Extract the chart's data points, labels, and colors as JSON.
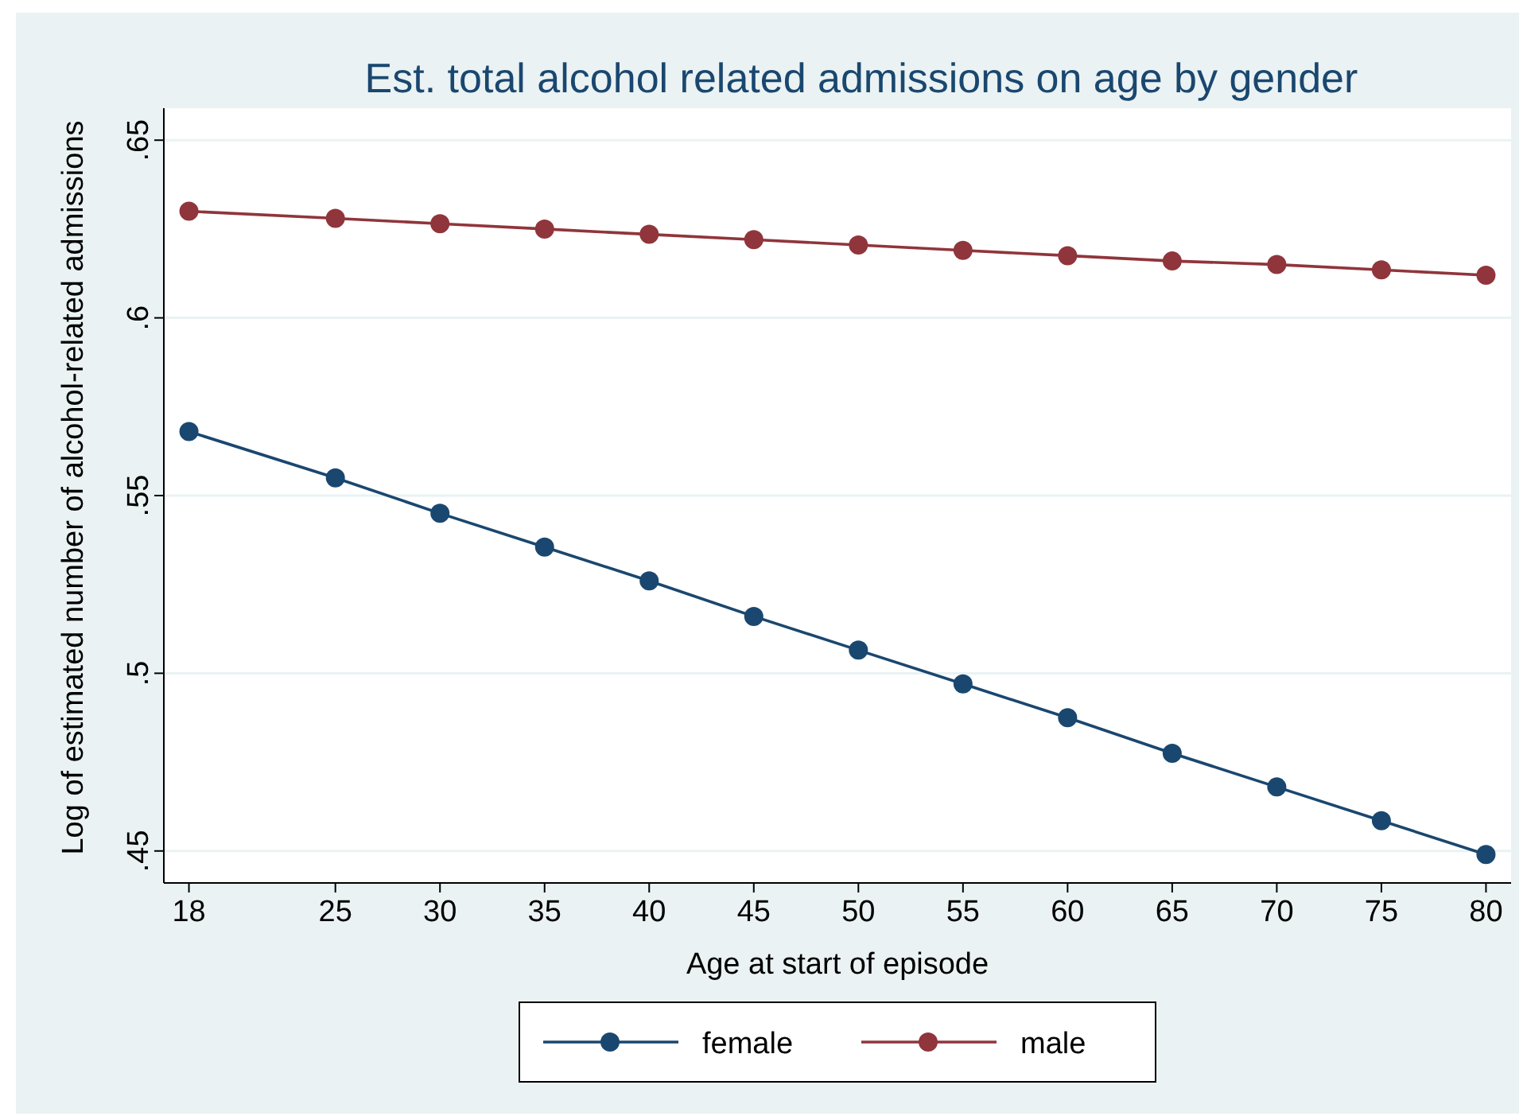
{
  "chart_data": {
    "type": "line",
    "title": "Est. total alcohol related admissions on age by gender",
    "xlabel": "Age at start of episode",
    "ylabel": "Log of estimated number of alcohol-related admissions",
    "x": [
      18,
      25,
      30,
      35,
      40,
      45,
      50,
      55,
      60,
      65,
      70,
      75,
      80
    ],
    "series": [
      {
        "name": "female",
        "color": "#1a476f",
        "values": [
          0.568,
          0.555,
          0.545,
          0.5355,
          0.526,
          0.516,
          0.5065,
          0.497,
          0.4875,
          0.4775,
          0.468,
          0.4585,
          0.449
        ]
      },
      {
        "name": "male",
        "color": "#90353b",
        "values": [
          0.63,
          0.628,
          0.6265,
          0.625,
          0.6235,
          0.622,
          0.6205,
          0.619,
          0.6175,
          0.616,
          0.615,
          0.6135,
          0.612
        ]
      }
    ],
    "xlim": [
      16.8,
      81.2
    ],
    "xticks": [
      18,
      25,
      30,
      35,
      40,
      45,
      50,
      55,
      60,
      65,
      70,
      75,
      80
    ],
    "ylim": [
      0.441,
      0.659
    ],
    "yticks": [
      {
        "value": 0.45,
        "label": ".45"
      },
      {
        "value": 0.5,
        "label": ".5"
      },
      {
        "value": 0.55,
        "label": ".55"
      },
      {
        "value": 0.6,
        "label": ".6"
      },
      {
        "value": 0.65,
        "label": ".65"
      }
    ],
    "grid": "y",
    "legend": "bottom",
    "marker": "circle",
    "line_style": "solid"
  }
}
